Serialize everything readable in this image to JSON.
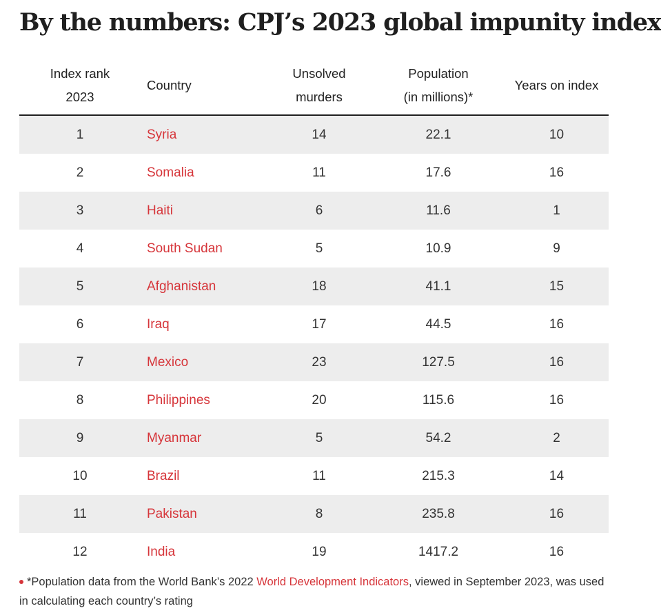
{
  "title": "By the numbers: CPJ’s 2023 global impunity index",
  "table": {
    "headers": {
      "rank_line1": "Index rank",
      "rank_line2": "2023",
      "country": "Country",
      "murders_line1": "Unsolved",
      "murders_line2": "murders",
      "pop_line1": "Population",
      "pop_line2": "(in millions)*",
      "years": "Years on index"
    },
    "rows": [
      {
        "rank": "1",
        "country": "Syria",
        "murders": "14",
        "population": "22.1",
        "years": "10"
      },
      {
        "rank": "2",
        "country": "Somalia",
        "murders": "11",
        "population": "17.6",
        "years": "16"
      },
      {
        "rank": "3",
        "country": "Haiti",
        "murders": "6",
        "population": "11.6",
        "years": "1"
      },
      {
        "rank": "4",
        "country": "South Sudan",
        "murders": "5",
        "population": "10.9",
        "years": "9"
      },
      {
        "rank": "5",
        "country": "Afghanistan",
        "murders": "18",
        "population": "41.1",
        "years": "15"
      },
      {
        "rank": "6",
        "country": "Iraq",
        "murders": "17",
        "population": "44.5",
        "years": "16"
      },
      {
        "rank": "7",
        "country": "Mexico",
        "murders": "23",
        "population": "127.5",
        "years": "16"
      },
      {
        "rank": "8",
        "country": "Philippines",
        "murders": "20",
        "population": "115.6",
        "years": "16"
      },
      {
        "rank": "9",
        "country": "Myanmar",
        "murders": "5",
        "population": "54.2",
        "years": "2"
      },
      {
        "rank": "10",
        "country": "Brazil",
        "murders": "11",
        "population": "215.3",
        "years": "14"
      },
      {
        "rank": "11",
        "country": "Pakistan",
        "murders": "8",
        "population": "235.8",
        "years": "16"
      },
      {
        "rank": "12",
        "country": "India",
        "murders": "19",
        "population": "1417.2",
        "years": "16"
      }
    ]
  },
  "footnote": {
    "before_link": "*Population data from the World Bank’s 2022 ",
    "link_text": "World Development Indicators",
    "after_link": ", viewed in September 2023, was used in calculating each country’s rating"
  },
  "colors": {
    "accent": "#d6353a",
    "row_shade": "#ededed",
    "text": "#222222"
  }
}
